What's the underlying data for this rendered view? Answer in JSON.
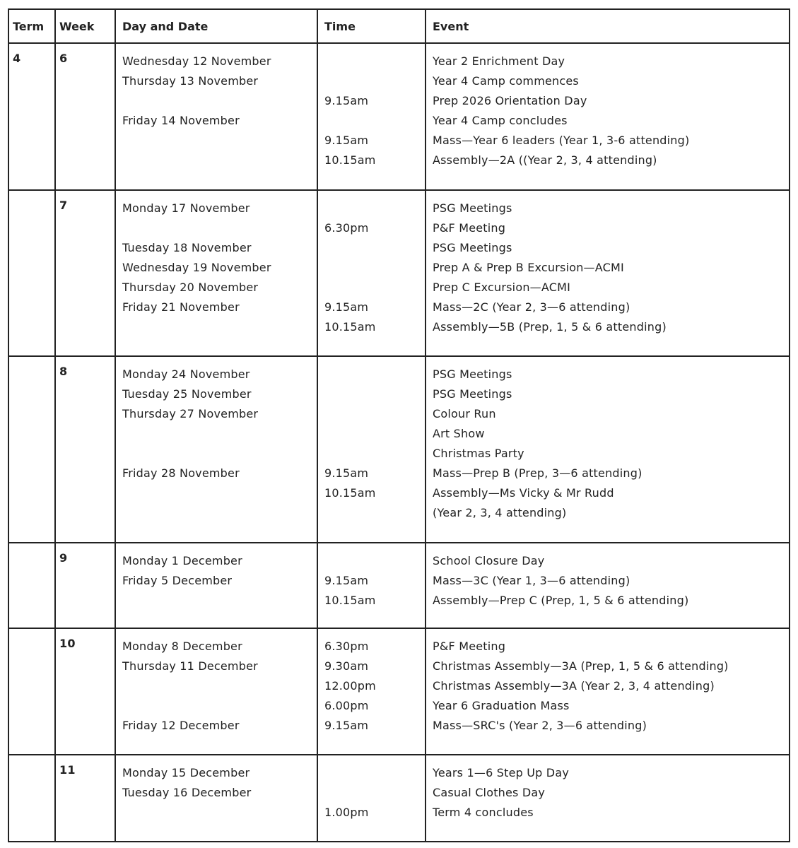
{
  "headers": [
    "Term",
    "Week",
    "Day and Date",
    "Time",
    "Event"
  ],
  "rows": [
    {
      "term": "4",
      "week": "6",
      "lines": [
        [
          "Wednesday 12 November",
          "",
          "Year 2 Enrichment Day"
        ],
        [
          "Thursday 13 November",
          "",
          "Year 4 Camp commences"
        ],
        [
          "",
          "9.15am",
          "Prep 2026 Orientation Day"
        ],
        [
          "Friday 14 November",
          "",
          "Year 4 Camp concludes"
        ],
        [
          "",
          "9.15am",
          "Mass—Year 6 leaders (Year 1, 3-6 attending)"
        ],
        [
          "",
          "10.15am",
          "Assembly—2A ((Year 2, 3, 4 attending)"
        ]
      ]
    },
    {
      "term": "",
      "week": "7",
      "lines": [
        [
          "Monday 17 November",
          "",
          "PSG Meetings"
        ],
        [
          "",
          "6.30pm",
          "P&F Meeting"
        ],
        [
          "Tuesday 18 November",
          "",
          "PSG Meetings"
        ],
        [
          "Wednesday 19 November",
          "",
          "Prep A & Prep B Excursion—ACMI"
        ],
        [
          "Thursday 20 November",
          "",
          "Prep C Excursion—ACMI"
        ],
        [
          "Friday 21 November",
          "9.15am",
          "Mass—2C (Year 2, 3—6 attending)"
        ],
        [
          "",
          "10.15am",
          "Assembly—5B (Prep, 1, 5 & 6 attending)"
        ]
      ]
    },
    {
      "term": "",
      "week": "8",
      "lines": [
        [
          "Monday 24 November",
          "",
          "PSG Meetings"
        ],
        [
          "Tuesday 25 November",
          "",
          "PSG Meetings"
        ],
        [
          "Thursday 27 November",
          "",
          "Colour Run"
        ],
        [
          "",
          "",
          "Art Show"
        ],
        [
          "",
          "",
          "Christmas Party"
        ],
        [
          "Friday 28 November",
          "9.15am",
          "Mass—Prep B (Prep, 3—6 attending)"
        ],
        [
          "",
          "10.15am",
          "Assembly—Ms Vicky & Mr Rudd"
        ],
        [
          "",
          "",
          "(Year 2, 3, 4 attending)"
        ]
      ]
    },
    {
      "term": "",
      "week": "9",
      "lines": [
        [
          "Monday 1 December",
          "",
          "School Closure Day"
        ],
        [
          "Friday 5 December",
          "9.15am",
          "Mass—3C (Year 1, 3—6 attending)"
        ],
        [
          "",
          "10.15am",
          "Assembly—Prep C (Prep, 1, 5 & 6 attending)"
        ]
      ]
    },
    {
      "term": "",
      "week": "10",
      "lines": [
        [
          "Monday 8 December",
          "6.30pm",
          "P&F Meeting"
        ],
        [
          "Thursday 11 December",
          "9.30am",
          "Christmas Assembly—3A (Prep, 1, 5 & 6 attending)"
        ],
        [
          "",
          "12.00pm",
          "Christmas Assembly—3A (Year 2, 3, 4 attending)"
        ],
        [
          "",
          "6.00pm",
          "Year 6 Graduation Mass"
        ],
        [
          "Friday 12 December",
          "9.15am",
          "Mass—SRC's (Year 2, 3—6 attending)"
        ]
      ]
    },
    {
      "term": "",
      "week": "11",
      "lines": [
        [
          "Monday 15 December",
          "",
          "Years 1—6 Step Up Day"
        ],
        [
          "Tuesday 16 December",
          "",
          "Casual Clothes Day"
        ],
        [
          "",
          "1.00pm",
          "Term 4 concludes"
        ]
      ]
    }
  ]
}
